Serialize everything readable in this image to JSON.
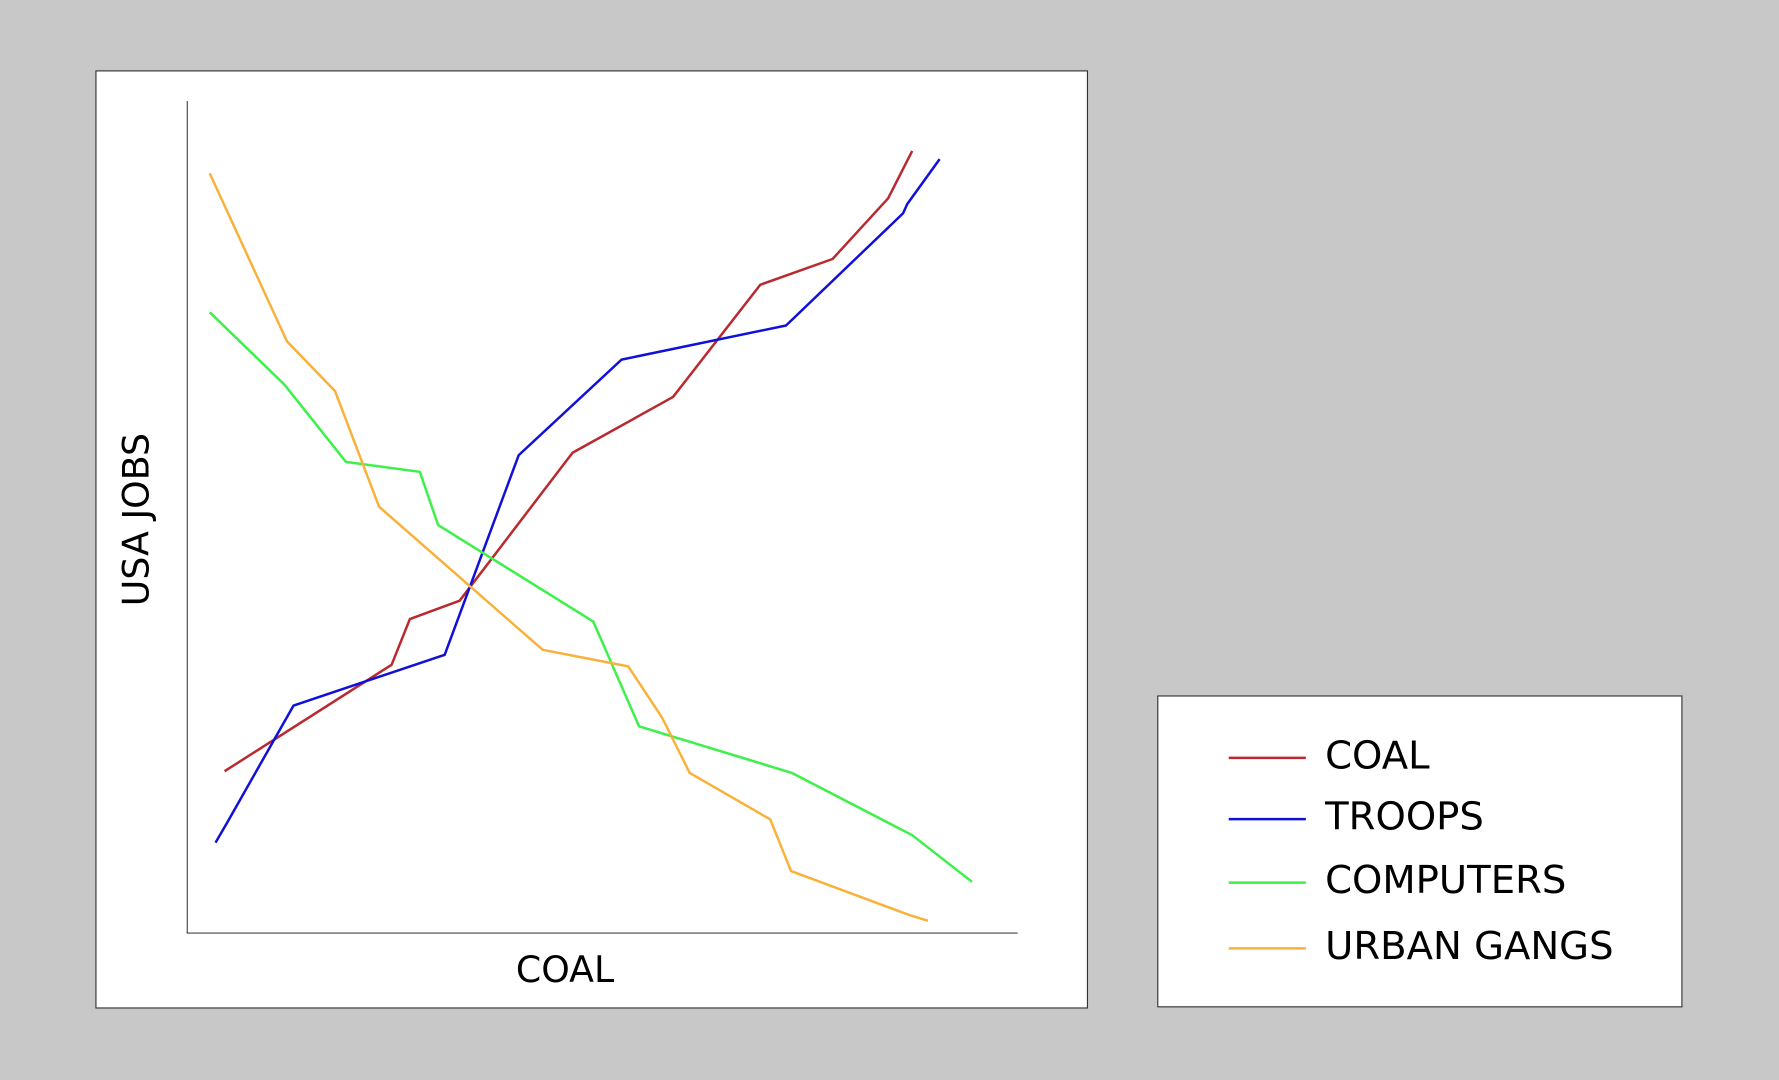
{
  "chart_data": {
    "type": "line",
    "x_label": "COAL",
    "y_label": "USA JOBS",
    "xlim": [
      0,
      100
    ],
    "ylim": [
      0,
      100
    ],
    "series": [
      {
        "name": "COAL",
        "color": "#b82a2f",
        "x": [
          4.5,
          24.6,
          26.8,
          32.8,
          46.4,
          58.5,
          69.0,
          77.7,
          84.4,
          87.3
        ],
        "values": [
          19.4,
          32.2,
          37.7,
          39.9,
          57.7,
          64.4,
          77.9,
          81.0,
          88.3,
          94.0
        ]
      },
      {
        "name": "TROOPS",
        "color": "#1010d8",
        "x": [
          3.4,
          4.8,
          12.8,
          31.0,
          39.9,
          52.3,
          72.1,
          86.2,
          86.7,
          90.6
        ],
        "values": [
          10.8,
          13.2,
          27.3,
          33.4,
          57.4,
          68.9,
          73.0,
          86.5,
          87.6,
          93.0
        ]
      },
      {
        "name": "COMPUTERS",
        "color": "#3ef04a",
        "x": [
          2.7,
          11.7,
          19.1,
          28.0,
          30.2,
          48.9,
          54.4,
          72.8,
          87.3,
          94.5
        ],
        "values": [
          74.6,
          65.9,
          56.6,
          55.4,
          49.0,
          37.4,
          24.8,
          19.2,
          11.7,
          6.1
        ]
      },
      {
        "name": "URBAN GANGS",
        "color": "#f8b23a",
        "x": [
          2.7,
          12.0,
          17.8,
          23.1,
          42.8,
          53.1,
          57.2,
          60.5,
          70.2,
          72.7,
          86.7,
          89.2
        ],
        "values": [
          91.3,
          71.1,
          65.1,
          51.2,
          34.0,
          32.0,
          25.8,
          19.2,
          13.6,
          7.4,
          2.2,
          1.4
        ]
      }
    ]
  }
}
